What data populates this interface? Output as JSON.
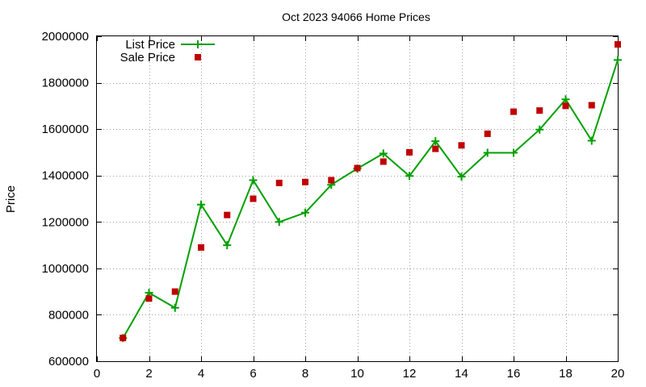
{
  "chart_data": {
    "type": "line",
    "title": "Oct 2023 94066 Home Prices",
    "xlabel": "",
    "ylabel": "Price",
    "xlim": [
      0,
      20
    ],
    "ylim": [
      600000,
      2000000
    ],
    "xticks": [
      0,
      2,
      4,
      6,
      8,
      10,
      12,
      14,
      16,
      18,
      20
    ],
    "yticks": [
      600000,
      800000,
      1000000,
      1200000,
      1400000,
      1600000,
      1800000,
      2000000
    ],
    "grid": true,
    "legend_position": "top-left",
    "series": [
      {
        "name": "List Price",
        "style": "line-with-plus-markers",
        "color": "#00a000",
        "x": [
          1,
          2,
          3,
          4,
          5,
          6,
          7,
          8,
          9,
          10,
          11,
          12,
          13,
          14,
          15,
          16,
          17,
          18,
          19,
          20
        ],
        "values": [
          700000,
          895000,
          830000,
          1275000,
          1100000,
          1380000,
          1200000,
          1240000,
          1360000,
          1430000,
          1495000,
          1398000,
          1548000,
          1395000,
          1498000,
          1498000,
          1598000,
          1728000,
          1550000,
          1898000
        ]
      },
      {
        "name": "Sale Price",
        "style": "square-markers",
        "color": "#c00000",
        "x": [
          1,
          2,
          3,
          4,
          5,
          6,
          7,
          8,
          9,
          10,
          11,
          12,
          13,
          14,
          15,
          16,
          17,
          18,
          19,
          20
        ],
        "values": [
          700000,
          870000,
          900000,
          1090000,
          1230000,
          1300000,
          1368000,
          1372000,
          1380000,
          1432000,
          1460000,
          1500000,
          1515000,
          1530000,
          1580000,
          1675000,
          1680000,
          1700000,
          1703000,
          1965000
        ]
      }
    ]
  }
}
